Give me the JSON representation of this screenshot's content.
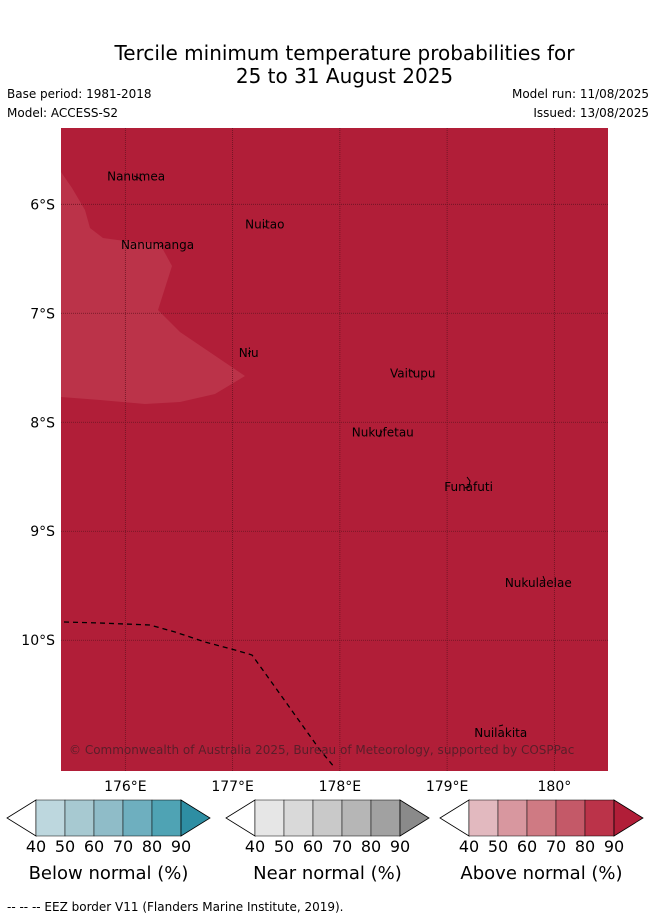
{
  "title": {
    "line1": "Tercile minimum temperature probabilities for",
    "line2": "25 to 31 August 2025"
  },
  "meta": {
    "base_period": "Base period: 1981-2018",
    "model": "Model: ACCESS-S2",
    "model_run": "Model run: 11/08/2025",
    "issued": "Issued: 13/08/2025"
  },
  "map": {
    "lon_range": [
      175.4,
      180.5
    ],
    "lat_range": [
      -11.2,
      -5.3
    ],
    "background_color": "#b11e38",
    "light_region_color": "#bb3349",
    "gridline_color": "#6a1422",
    "lon_ticks": [
      {
        "value": 176,
        "label": "176°E"
      },
      {
        "value": 177,
        "label": "177°E"
      },
      {
        "value": 178,
        "label": "178°E"
      },
      {
        "value": 179,
        "label": "179°E"
      },
      {
        "value": 180,
        "label": "180°"
      }
    ],
    "lat_ticks": [
      {
        "value": -6,
        "label": "6°S"
      },
      {
        "value": -7,
        "label": "7°S"
      },
      {
        "value": -8,
        "label": "8°S"
      },
      {
        "value": -9,
        "label": "9°S"
      },
      {
        "value": -10,
        "label": "10°S"
      }
    ],
    "places": [
      {
        "name": "Nanumea",
        "lon": 176.1,
        "lat": -5.67
      },
      {
        "name": "Nuitao",
        "lon": 177.3,
        "lat": -6.11
      },
      {
        "name": "Nanumanga",
        "lon": 176.3,
        "lat": -6.3
      },
      {
        "name": "Niu",
        "lon": 177.15,
        "lat": -7.29
      },
      {
        "name": "Vaitupu",
        "lon": 178.68,
        "lat": -7.48
      },
      {
        "name": "Nukufetau",
        "lon": 178.4,
        "lat": -8.02
      },
      {
        "name": "Funafuti",
        "lon": 179.2,
        "lat": -8.52
      },
      {
        "name": "Nukulaelae",
        "lon": 179.85,
        "lat": -9.4
      },
      {
        "name": "Nuilakita",
        "lon": 179.5,
        "lat": -10.78
      }
    ],
    "copyright": "© Commonwealth of Australia 2025, Bureau of Meteorology, supported by COSPPac"
  },
  "colorbars": [
    {
      "label": "Below normal (%)",
      "ticks": [
        "40",
        "50",
        "60",
        "70",
        "80",
        "90"
      ],
      "colors": [
        "#ffffff",
        "#bdd7de",
        "#a7c9d1",
        "#8fbcc8",
        "#6eafbf",
        "#4fa3b4",
        "#2e8ea3"
      ]
    },
    {
      "label": "Near normal (%)",
      "ticks": [
        "40",
        "50",
        "60",
        "70",
        "80",
        "90"
      ],
      "colors": [
        "#ffffff",
        "#e6e6e6",
        "#d9d9d9",
        "#c9c9c9",
        "#b6b6b6",
        "#a1a1a1",
        "#8a8a8a"
      ]
    },
    {
      "label": "Above normal (%)",
      "ticks": [
        "40",
        "50",
        "60",
        "70",
        "80",
        "90"
      ],
      "colors": [
        "#ffffff",
        "#e2b9bf",
        "#d8979f",
        "#cf7a83",
        "#c45968",
        "#bb3349",
        "#b11e38"
      ]
    }
  ],
  "footer": "--  --  -- EEZ border V11 (Flanders Marine Institute, 2019)."
}
